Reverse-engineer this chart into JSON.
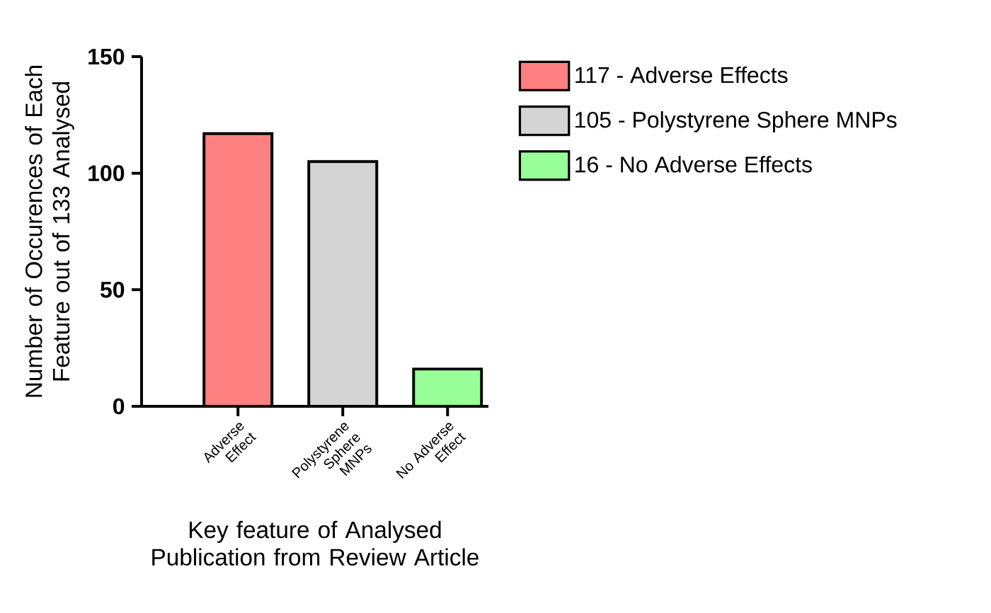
{
  "chart_data": {
    "type": "bar",
    "xlabel": "Key feature of Analysed Publication from Review Article",
    "ylabel": "Number of Occurences of Each Feature out of 133 Analysed",
    "categories": [
      "Adverse Effect",
      "Polystyrene Sphere MNPs",
      "No Adverse Effect"
    ],
    "series": [
      {
        "name": "117 - Adverse Effects",
        "color": "#ff8080",
        "values": [
          117,
          null,
          null
        ]
      },
      {
        "name": "105 - Polystyrene Sphere MNPs",
        "color": "#d4d4d4",
        "values": [
          null,
          105,
          null
        ]
      },
      {
        "name": "16 - No Adverse Effects",
        "color": "#99ff99",
        "values": [
          null,
          null,
          16
        ]
      }
    ],
    "ylim": [
      0,
      150
    ],
    "yticks": [
      0,
      50,
      100,
      150
    ],
    "grid": false,
    "legend": "right"
  }
}
